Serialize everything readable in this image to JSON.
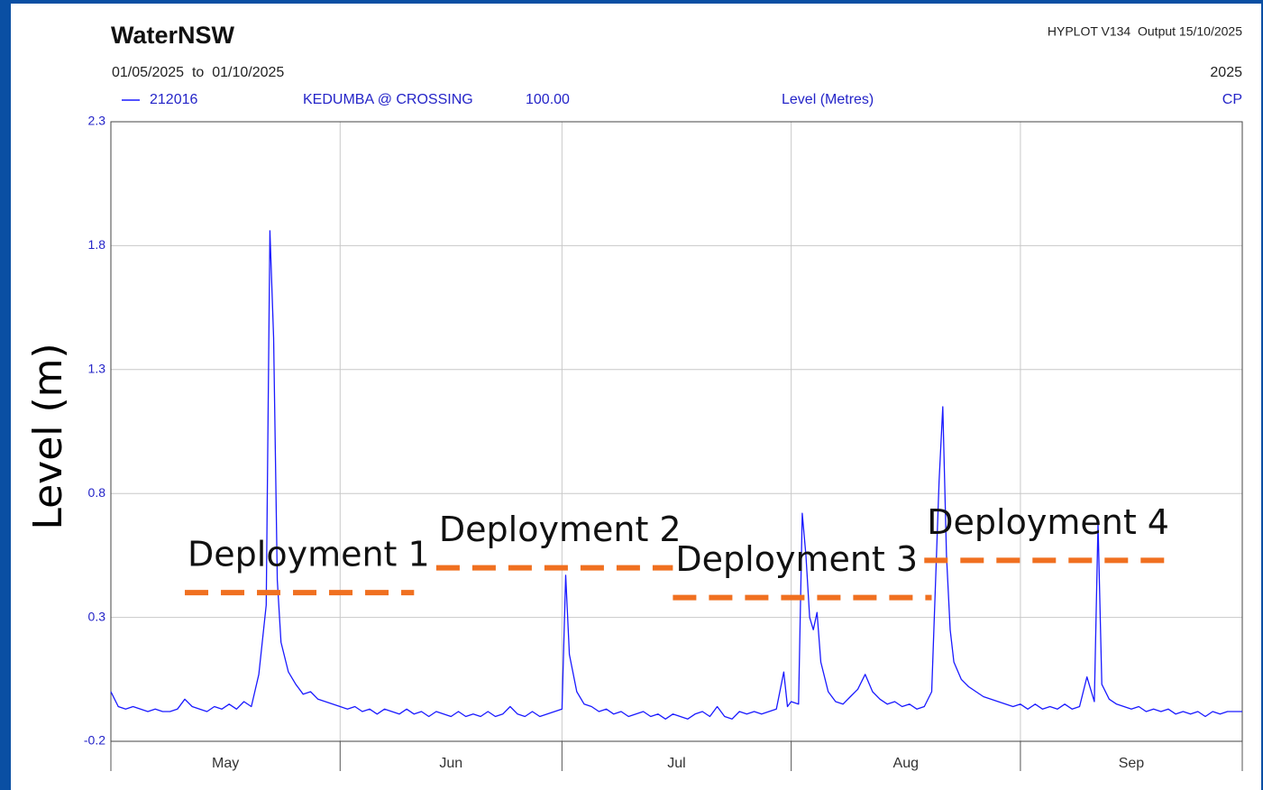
{
  "chart_data": {
    "type": "line",
    "title": "WaterNSW",
    "software": "HYPLOT V134  Output 15/10/2025",
    "date_range": "01/05/2025  to  01/10/2025",
    "year": "2025",
    "station": "KEDUMBA @ CROSSING",
    "datum": "100.00",
    "variable": "Level (Metres)",
    "quality": "CP",
    "y_label": "Level (m)",
    "xlim": [
      "2025-05-01",
      "2025-10-01"
    ],
    "month_gridlines": [
      "2025-06-01",
      "2025-07-01",
      "2025-08-01",
      "2025-09-01"
    ],
    "months": [
      "May",
      "Jun",
      "Jul",
      "Aug",
      "Sep"
    ],
    "ylim": [
      -0.2,
      2.3
    ],
    "yticks": [
      -0.2,
      0.3,
      0.8,
      1.3,
      1.8,
      2.3
    ],
    "grid": true,
    "x": [
      "2025-05-01",
      "2025-05-02",
      "2025-05-03",
      "2025-05-04",
      "2025-05-05",
      "2025-05-06",
      "2025-05-07",
      "2025-05-08",
      "2025-05-09",
      "2025-05-10",
      "2025-05-11",
      "2025-05-12",
      "2025-05-13",
      "2025-05-14",
      "2025-05-15",
      "2025-05-16",
      "2025-05-17",
      "2025-05-18",
      "2025-05-19",
      "2025-05-20",
      "2025-05-21",
      "2025-05-22",
      "2025-05-22T12:00",
      "2025-05-23",
      "2025-05-23T12:00",
      "2025-05-24",
      "2025-05-25",
      "2025-05-26",
      "2025-05-27",
      "2025-05-28",
      "2025-05-29",
      "2025-05-30",
      "2025-05-31",
      "2025-06-01",
      "2025-06-02",
      "2025-06-03",
      "2025-06-04",
      "2025-06-05",
      "2025-06-06",
      "2025-06-07",
      "2025-06-08",
      "2025-06-09",
      "2025-06-10",
      "2025-06-11",
      "2025-06-12",
      "2025-06-13",
      "2025-06-14",
      "2025-06-15",
      "2025-06-16",
      "2025-06-17",
      "2025-06-18",
      "2025-06-19",
      "2025-06-20",
      "2025-06-21",
      "2025-06-22",
      "2025-06-23",
      "2025-06-24",
      "2025-06-25",
      "2025-06-26",
      "2025-06-27",
      "2025-06-28",
      "2025-06-29",
      "2025-06-30",
      "2025-07-01",
      "2025-07-01T12:00",
      "2025-07-02",
      "2025-07-03",
      "2025-07-04",
      "2025-07-05",
      "2025-07-06",
      "2025-07-07",
      "2025-07-08",
      "2025-07-09",
      "2025-07-10",
      "2025-07-11",
      "2025-07-12",
      "2025-07-13",
      "2025-07-14",
      "2025-07-15",
      "2025-07-16",
      "2025-07-17",
      "2025-07-18",
      "2025-07-19",
      "2025-07-20",
      "2025-07-21",
      "2025-07-22",
      "2025-07-23",
      "2025-07-24",
      "2025-07-25",
      "2025-07-26",
      "2025-07-27",
      "2025-07-28",
      "2025-07-29",
      "2025-07-30",
      "2025-07-31",
      "2025-07-31T12:00",
      "2025-08-01",
      "2025-08-02",
      "2025-08-02T12:00",
      "2025-08-03",
      "2025-08-03T12:00",
      "2025-08-04",
      "2025-08-04T12:00",
      "2025-08-05",
      "2025-08-06",
      "2025-08-07",
      "2025-08-08",
      "2025-08-09",
      "2025-08-10",
      "2025-08-11",
      "2025-08-12",
      "2025-08-13",
      "2025-08-14",
      "2025-08-15",
      "2025-08-16",
      "2025-08-17",
      "2025-08-18",
      "2025-08-19",
      "2025-08-20",
      "2025-08-21",
      "2025-08-21T12:00",
      "2025-08-22",
      "2025-08-22T12:00",
      "2025-08-23",
      "2025-08-24",
      "2025-08-25",
      "2025-08-26",
      "2025-08-27",
      "2025-08-28",
      "2025-08-29",
      "2025-08-30",
      "2025-08-31",
      "2025-09-01",
      "2025-09-02",
      "2025-09-03",
      "2025-09-04",
      "2025-09-05",
      "2025-09-06",
      "2025-09-07",
      "2025-09-08",
      "2025-09-09",
      "2025-09-10",
      "2025-09-11",
      "2025-09-11T12:00",
      "2025-09-12",
      "2025-09-13",
      "2025-09-14",
      "2025-09-15",
      "2025-09-16",
      "2025-09-17",
      "2025-09-18",
      "2025-09-19",
      "2025-09-20",
      "2025-09-21",
      "2025-09-22",
      "2025-09-23",
      "2025-09-24",
      "2025-09-25",
      "2025-09-26",
      "2025-09-27",
      "2025-09-28",
      "2025-09-29",
      "2025-09-30",
      "2025-10-01"
    ],
    "series": [
      {
        "name": "212016",
        "color": "#1a1aff",
        "values": [
          0.0,
          -0.06,
          -0.07,
          -0.06,
          -0.07,
          -0.08,
          -0.07,
          -0.08,
          -0.08,
          -0.07,
          -0.03,
          -0.06,
          -0.07,
          -0.08,
          -0.06,
          -0.07,
          -0.05,
          -0.07,
          -0.04,
          -0.06,
          0.07,
          0.35,
          1.86,
          1.43,
          0.45,
          0.2,
          0.08,
          0.03,
          -0.01,
          0.0,
          -0.03,
          -0.04,
          -0.05,
          -0.06,
          -0.07,
          -0.06,
          -0.08,
          -0.07,
          -0.09,
          -0.07,
          -0.08,
          -0.09,
          -0.07,
          -0.09,
          -0.08,
          -0.1,
          -0.08,
          -0.09,
          -0.1,
          -0.08,
          -0.1,
          -0.09,
          -0.1,
          -0.08,
          -0.1,
          -0.09,
          -0.06,
          -0.09,
          -0.1,
          -0.08,
          -0.1,
          -0.09,
          -0.08,
          -0.07,
          0.47,
          0.15,
          0.0,
          -0.05,
          -0.06,
          -0.08,
          -0.07,
          -0.09,
          -0.08,
          -0.1,
          -0.09,
          -0.08,
          -0.1,
          -0.09,
          -0.11,
          -0.09,
          -0.1,
          -0.11,
          -0.09,
          -0.08,
          -0.1,
          -0.06,
          -0.1,
          -0.11,
          -0.08,
          -0.09,
          -0.08,
          -0.09,
          -0.08,
          -0.07,
          0.08,
          -0.06,
          -0.04,
          -0.05,
          0.72,
          0.55,
          0.3,
          0.25,
          0.32,
          0.12,
          0.0,
          -0.04,
          -0.05,
          -0.02,
          0.01,
          0.07,
          0.0,
          -0.03,
          -0.05,
          -0.04,
          -0.06,
          -0.05,
          -0.07,
          -0.06,
          0.0,
          0.85,
          1.15,
          0.55,
          0.25,
          0.12,
          0.05,
          0.02,
          0.0,
          -0.02,
          -0.03,
          -0.04,
          -0.05,
          -0.06,
          -0.05,
          -0.07,
          -0.05,
          -0.07,
          -0.06,
          -0.07,
          -0.05,
          -0.07,
          -0.06,
          0.06,
          -0.04,
          0.68,
          0.03,
          -0.03,
          -0.05,
          -0.06,
          -0.07,
          -0.06,
          -0.08,
          -0.07,
          -0.08,
          -0.07,
          -0.09,
          -0.08,
          -0.09,
          -0.08,
          -0.1,
          -0.08,
          -0.09,
          -0.08,
          -0.08,
          -0.08
        ]
      }
    ],
    "annotations": [
      {
        "text": "Deployment 1",
        "level": 0.4,
        "start": "2025-05-11",
        "end": "2025-06-11",
        "color": "#f07020"
      },
      {
        "text": "Deployment 2",
        "level": 0.5,
        "start": "2025-06-14",
        "end": "2025-07-16",
        "color": "#f07020"
      },
      {
        "text": "Deployment 3",
        "level": 0.38,
        "start": "2025-07-16",
        "end": "2025-08-20",
        "color": "#f07020"
      },
      {
        "text": "Deployment 4",
        "level": 0.53,
        "start": "2025-08-19",
        "end": "2025-09-21",
        "color": "#f07020"
      }
    ]
  }
}
